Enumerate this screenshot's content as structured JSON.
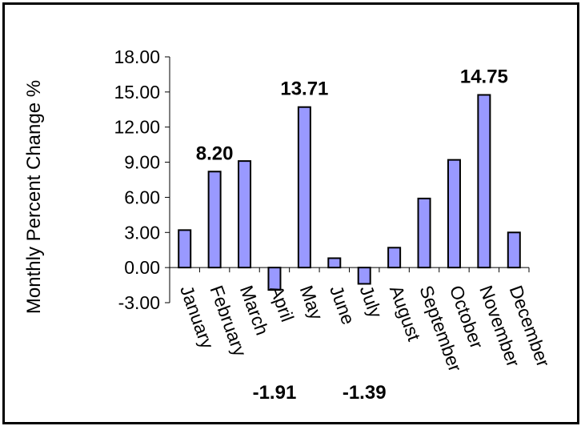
{
  "chart_data": {
    "type": "bar",
    "title": "",
    "xlabel": "",
    "ylabel": "Monthly Percent Change %",
    "ylim": [
      -3,
      18
    ],
    "yticks": [
      18,
      15,
      12,
      9,
      6,
      3,
      0,
      -3
    ],
    "ytick_labels": [
      "18.00",
      "15.00",
      "12.00",
      "9.00",
      "6.00",
      "3.00",
      "0.00",
      "-3.00"
    ],
    "categories": [
      "January",
      "February",
      "March",
      "April",
      "May",
      "June",
      "July",
      "August",
      "September",
      "October",
      "November",
      "December"
    ],
    "values": [
      3.2,
      8.2,
      9.1,
      -1.91,
      13.71,
      0.8,
      -1.39,
      1.7,
      5.9,
      9.2,
      14.75,
      3.0
    ],
    "data_labels": [
      {
        "index": 1,
        "text": "8.20"
      },
      {
        "index": 3,
        "text": "-1.91"
      },
      {
        "index": 4,
        "text": "13.71"
      },
      {
        "index": 6,
        "text": "-1.39"
      },
      {
        "index": 10,
        "text": "14.75"
      }
    ],
    "bar_color": "#9999ff",
    "bar_edge_color": "#000000",
    "grid": false,
    "legend": "none"
  }
}
